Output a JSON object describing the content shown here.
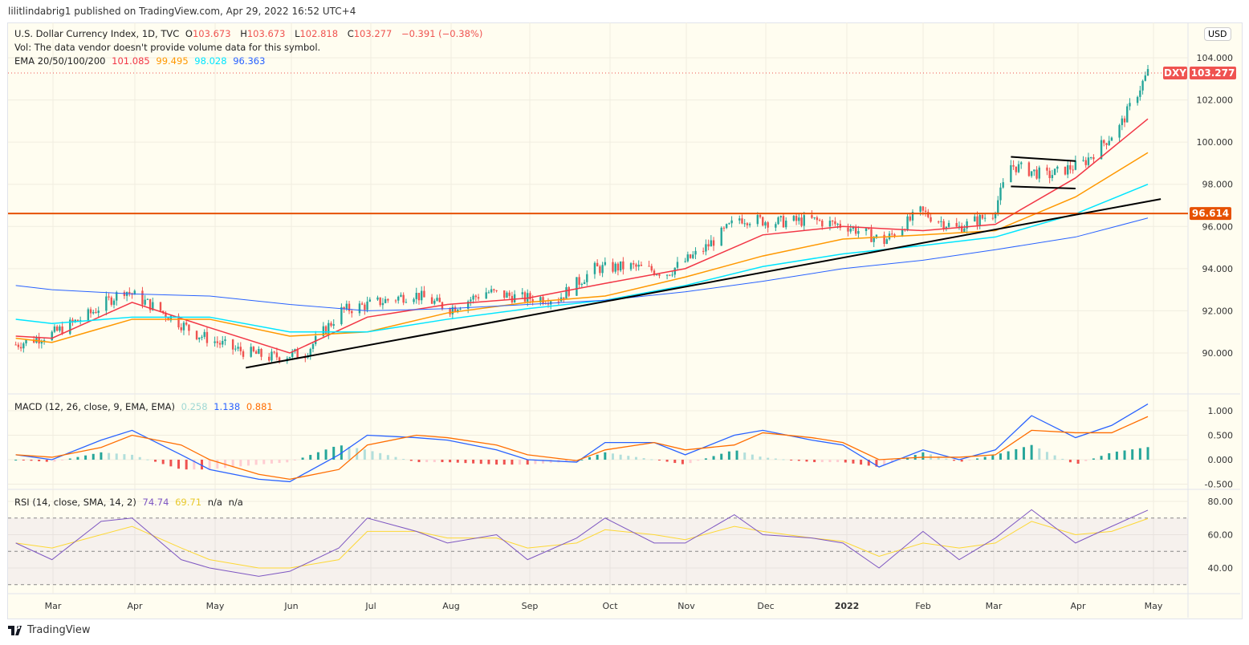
{
  "publish_line": "lilitlindabrig1 published on TradingView.com, Apr 29, 2022 16:52 UTC+4",
  "legend": {
    "symbol": "U.S. Dollar Currency Index, 1D, TVC",
    "o_label": "O",
    "o": "103.673",
    "h_label": "H",
    "h": "103.673",
    "l_label": "L",
    "l": "102.818",
    "c_label": "C",
    "c": "103.277",
    "change": "−0.391 (−0.38%)",
    "vol": "Vol: The data vendor doesn't provide volume data for this symbol.",
    "ema_label": "EMA 20/50/100/200",
    "ema_values": [
      "101.085",
      "99.495",
      "98.028",
      "96.363"
    ],
    "macd_label": "MACD (12, 26, close, 9, EMA, EMA)",
    "macd_values": [
      "0.258",
      "1.138",
      "0.881"
    ],
    "rsi_label": "RSI (14, close, SMA, 14, 2)",
    "rsi_values": [
      "74.74",
      "69.71",
      "n/a",
      "n/a"
    ]
  },
  "currency_button": "USD",
  "price_tag": {
    "symbol": "DXY",
    "value": "103.277"
  },
  "level_tag": "96.614",
  "footer_logo": "TradingView",
  "colors": {
    "up": "#26a69a",
    "down": "#ef5350",
    "ema20": "#f23645",
    "ema50": "#ff9800",
    "ema100": "#00e5ff",
    "ema200": "#2962ff",
    "level": "#e65100",
    "macd": "#2962ff",
    "signal": "#ff6d00",
    "rsi": "#7e57c2",
    "rsi_ma": "#fdd835"
  },
  "chart_data": [
    {
      "type": "candlestick",
      "title": "U.S. Dollar Currency Index, 1D, TVC",
      "ylim": [
        88.5,
        105
      ],
      "y_ticks": [
        "90.000",
        "92.000",
        "94.000",
        "96.000",
        "98.000",
        "100.000",
        "102.000",
        "104.000"
      ],
      "x_ticks": [
        "Mar",
        "Apr",
        "May",
        "Jun",
        "Jul",
        "Aug",
        "Sep",
        "Oct",
        "Nov",
        "Dec",
        "2022",
        "Feb",
        "Mar",
        "Apr",
        "May"
      ],
      "close": [
        [
          "2021-02-15",
          90.4
        ],
        [
          "2021-03-01",
          90.9
        ],
        [
          "2021-03-15",
          91.8
        ],
        [
          "2021-03-29",
          93.0
        ],
        [
          "2021-04-12",
          92.0
        ],
        [
          "2021-04-26",
          90.9
        ],
        [
          "2021-05-10",
          90.2
        ],
        [
          "2021-05-24",
          89.8
        ],
        [
          "2021-06-07",
          90.0
        ],
        [
          "2021-06-21",
          92.0
        ],
        [
          "2021-07-05",
          92.4
        ],
        [
          "2021-07-19",
          92.8
        ],
        [
          "2021-08-02",
          92.1
        ],
        [
          "2021-08-16",
          92.9
        ],
        [
          "2021-08-30",
          92.6
        ],
        [
          "2021-09-13",
          92.6
        ],
        [
          "2021-09-27",
          94.0
        ],
        [
          "2021-10-11",
          94.1
        ],
        [
          "2021-10-25",
          93.8
        ],
        [
          "2021-11-08",
          94.9
        ],
        [
          "2021-11-22",
          96.4
        ],
        [
          "2021-12-06",
          96.2
        ],
        [
          "2021-12-20",
          96.3
        ],
        [
          "2022-01-03",
          96.0
        ],
        [
          "2022-01-17",
          95.3
        ],
        [
          "2022-01-31",
          96.7
        ],
        [
          "2022-02-14",
          95.9
        ],
        [
          "2022-02-28",
          96.6
        ],
        [
          "2022-03-07",
          98.9
        ],
        [
          "2022-03-21",
          98.4
        ],
        [
          "2022-04-04",
          99.0
        ],
        [
          "2022-04-18",
          100.7
        ],
        [
          "2022-04-29",
          103.3
        ]
      ],
      "ema_dates": [
        "2021-02-15",
        "2021-03-01",
        "2021-04-01",
        "2021-05-01",
        "2021-06-01",
        "2021-07-01",
        "2021-08-01",
        "2021-09-01",
        "2021-10-01",
        "2021-11-01",
        "2021-12-01",
        "2022-01-01",
        "2022-02-01",
        "2022-03-01",
        "2022-04-01",
        "2022-04-29"
      ],
      "series": [
        {
          "name": "EMA 20",
          "values": [
            90.8,
            90.7,
            92.4,
            91.2,
            90.0,
            91.7,
            92.3,
            92.6,
            93.3,
            94.0,
            95.6,
            96.0,
            95.8,
            96.1,
            98.3,
            101.1
          ]
        },
        {
          "name": "EMA 50",
          "values": [
            90.7,
            90.5,
            91.6,
            91.6,
            90.8,
            91.0,
            91.9,
            92.4,
            92.7,
            93.6,
            94.6,
            95.4,
            95.6,
            95.8,
            97.4,
            99.5
          ]
        },
        {
          "name": "EMA 100",
          "values": [
            91.6,
            91.4,
            91.7,
            91.7,
            91.0,
            91.0,
            91.6,
            92.1,
            92.5,
            93.2,
            94.1,
            94.7,
            95.1,
            95.5,
            96.6,
            98.0
          ]
        },
        {
          "name": "EMA 200",
          "values": [
            93.2,
            93.0,
            92.8,
            92.7,
            92.3,
            92.0,
            92.1,
            92.3,
            92.5,
            92.9,
            93.4,
            94.0,
            94.4,
            94.9,
            95.5,
            96.4
          ]
        }
      ],
      "drawings": {
        "horizontal_level": 96.614,
        "trendline": [
          [
            "2021-05-15",
            89.3
          ],
          [
            "2022-05-04",
            97.3
          ]
        ],
        "flag_upper": [
          [
            "2022-03-07",
            99.3
          ],
          [
            "2022-04-01",
            99.1
          ]
        ],
        "flag_lower": [
          [
            "2022-03-07",
            97.9
          ],
          [
            "2022-04-01",
            97.8
          ]
        ]
      }
    },
    {
      "type": "line",
      "title": "MACD (12, 26, close, 9, EMA, EMA)",
      "ylim": [
        -0.55,
        1.3
      ],
      "y_ticks": [
        "-0.500",
        "0.000",
        "0.500",
        "1.000"
      ],
      "dates": [
        "2021-02-15",
        "2021-03-01",
        "2021-03-20",
        "2021-04-01",
        "2021-04-20",
        "2021-05-01",
        "2021-05-20",
        "2021-06-01",
        "2021-06-20",
        "2021-07-01",
        "2021-07-20",
        "2021-08-01",
        "2021-08-20",
        "2021-09-01",
        "2021-09-20",
        "2021-10-01",
        "2021-10-20",
        "2021-11-01",
        "2021-11-20",
        "2021-12-01",
        "2021-12-20",
        "2022-01-01",
        "2022-01-15",
        "2022-02-01",
        "2022-02-15",
        "2022-03-01",
        "2022-03-15",
        "2022-04-01",
        "2022-04-15",
        "2022-04-29"
      ],
      "macd": [
        0.1,
        0.0,
        0.4,
        0.6,
        0.1,
        -0.2,
        -0.4,
        -0.45,
        0.1,
        0.5,
        0.45,
        0.4,
        0.2,
        0.0,
        -0.05,
        0.35,
        0.35,
        0.1,
        0.5,
        0.6,
        0.4,
        0.3,
        -0.15,
        0.2,
        0.0,
        0.2,
        0.9,
        0.45,
        0.7,
        1.138
      ],
      "signal": [
        0.1,
        0.05,
        0.25,
        0.5,
        0.3,
        0.0,
        -0.3,
        -0.4,
        -0.2,
        0.3,
        0.5,
        0.45,
        0.3,
        0.1,
        -0.02,
        0.2,
        0.35,
        0.2,
        0.3,
        0.55,
        0.45,
        0.35,
        0.0,
        0.05,
        0.05,
        0.1,
        0.6,
        0.55,
        0.55,
        0.881
      ]
    },
    {
      "type": "line",
      "title": "RSI (14, close, SMA, 14, 2)",
      "ylim": [
        25,
        85
      ],
      "y_ticks": [
        "40.00",
        "60.00",
        "80.00"
      ],
      "bands": [
        30,
        50,
        70
      ],
      "dates": [
        "2021-02-15",
        "2021-03-01",
        "2021-03-20",
        "2021-04-01",
        "2021-04-20",
        "2021-05-01",
        "2021-05-20",
        "2021-06-01",
        "2021-06-20",
        "2021-07-01",
        "2021-07-20",
        "2021-08-01",
        "2021-08-20",
        "2021-09-01",
        "2021-09-20",
        "2021-10-01",
        "2021-10-20",
        "2021-11-01",
        "2021-11-20",
        "2021-12-01",
        "2021-12-20",
        "2022-01-01",
        "2022-01-15",
        "2022-02-01",
        "2022-02-15",
        "2022-03-01",
        "2022-03-15",
        "2022-04-01",
        "2022-04-15",
        "2022-04-29"
      ],
      "rsi": [
        55,
        45,
        68,
        70,
        45,
        40,
        35,
        38,
        52,
        70,
        62,
        55,
        60,
        45,
        58,
        70,
        55,
        55,
        72,
        60,
        58,
        55,
        40,
        62,
        45,
        58,
        75,
        55,
        65,
        74.74
      ],
      "rsi_ma": [
        55,
        52,
        60,
        65,
        52,
        45,
        40,
        40,
        45,
        62,
        62,
        58,
        58,
        52,
        55,
        63,
        60,
        57,
        65,
        62,
        58,
        56,
        47,
        55,
        52,
        55,
        68,
        60,
        62,
        69.71
      ]
    }
  ]
}
